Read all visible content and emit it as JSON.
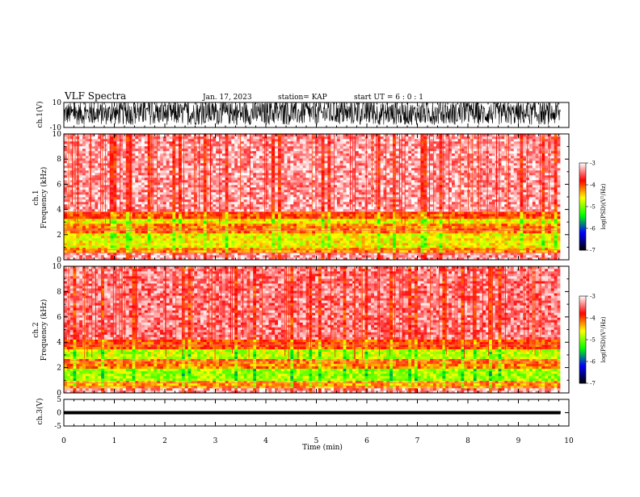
{
  "header": {
    "title": "VLF Spectra",
    "date": "Jan. 17, 2023",
    "station": "station= KAP",
    "start_ut": "start UT =  6 : 0  : 1"
  },
  "colors": {
    "colormap": [
      "#000000",
      "#0000ff",
      "#00ff00",
      "#ffff00",
      "#ff0000",
      "#ffffff"
    ],
    "waveform": "#000000"
  },
  "chart_data": [
    {
      "type": "line",
      "panel": "ch1-waveform",
      "ylabel": "ch.1(V)",
      "ylim": [
        -10,
        10
      ],
      "yticks": [
        "10",
        "-10"
      ],
      "xlim": [
        0,
        9.83
      ],
      "description_values": {
        "typical_amplitude_range": [
          -8,
          10
        ]
      }
    },
    {
      "type": "heatmap",
      "panel": "ch1-spectrogram",
      "ylabel": "ch.1\nFrequency (kHz)",
      "ylim": [
        0,
        10
      ],
      "yticks": [
        "0",
        "2",
        "4",
        "6",
        "8",
        "10"
      ],
      "xlim": [
        0,
        9.83
      ],
      "bands": [
        {
          "from": 0,
          "to": 0.5,
          "level": -3.3
        },
        {
          "from": 0.5,
          "to": 1.0,
          "level": -4.2
        },
        {
          "from": 1.0,
          "to": 2.1,
          "level": -4.6
        },
        {
          "from": 2.1,
          "to": 2.8,
          "level": -4.2
        },
        {
          "from": 2.8,
          "to": 3.3,
          "level": -4.6
        },
        {
          "from": 3.3,
          "to": 3.9,
          "level": -4.0
        },
        {
          "from": 3.9,
          "to": 10,
          "level": -3.3
        }
      ],
      "colorbar": {
        "label": "log(PSD)(V²/Hz)",
        "range": [
          -7,
          -3
        ],
        "ticks": [
          "-3",
          "-4",
          "-5",
          "-6",
          "-7"
        ]
      }
    },
    {
      "type": "heatmap",
      "panel": "ch2-spectrogram",
      "ylabel": "ch.2\nFrequency (kHz)",
      "ylim": [
        0,
        10
      ],
      "yticks": [
        "0",
        "2",
        "4",
        "6",
        "8",
        "10"
      ],
      "xlim": [
        0,
        9.83
      ],
      "bands": [
        {
          "from": 0,
          "to": 0.4,
          "level": -3.3
        },
        {
          "from": 0.4,
          "to": 1.0,
          "level": -4.3
        },
        {
          "from": 1.0,
          "to": 2.0,
          "level": -4.9
        },
        {
          "from": 2.0,
          "to": 2.6,
          "level": -4.2
        },
        {
          "from": 2.6,
          "to": 3.5,
          "level": -4.8
        },
        {
          "from": 3.5,
          "to": 4.2,
          "level": -4.0
        },
        {
          "from": 4.2,
          "to": 10,
          "level": -3.4
        }
      ],
      "colorbar": {
        "label": "log(PSD)(V²/Hz)",
        "range": [
          -7,
          -3
        ],
        "ticks": [
          "-3",
          "-4",
          "-5",
          "-6",
          "-7"
        ]
      }
    },
    {
      "type": "line",
      "panel": "ch3-waveform",
      "ylabel": "ch.3(V)",
      "ylim": [
        -5,
        5
      ],
      "yticks": [
        "5",
        "0",
        "-5"
      ],
      "xlim": [
        0,
        9.83
      ],
      "description_values": {
        "typical_amplitude_range": [
          -0.6,
          0.6
        ]
      }
    }
  ],
  "x_axis": {
    "label": "Time (min)",
    "ticks": [
      "0",
      "1",
      "2",
      "3",
      "4",
      "5",
      "6",
      "7",
      "8",
      "9",
      "10"
    ],
    "range": [
      0,
      10
    ]
  }
}
